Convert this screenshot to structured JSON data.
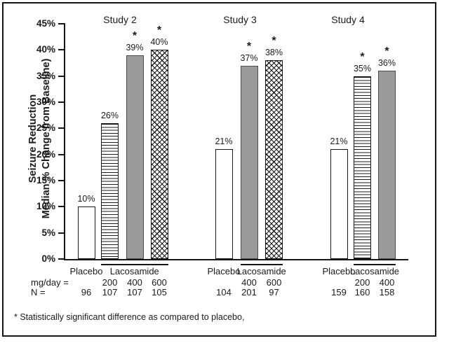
{
  "chart_data": {
    "type": "bar",
    "title": "",
    "y_axis": {
      "label_lines": [
        "Seizure Reduction",
        "Median % Change from Baseline)"
      ],
      "ylim": [
        0,
        45
      ],
      "tick_interval": 5,
      "tick_labels": [
        "0%",
        "5%",
        "10%",
        "15%",
        "20%",
        "25%",
        "30%",
        "35%",
        "40%",
        "45%"
      ],
      "grid": "off"
    },
    "row_labels": {
      "dose": "mg/day =",
      "n": "N ="
    },
    "significance_marker": "*",
    "footnote": "* Statistically significant difference as compared to placebo,",
    "colors": {
      "solid_bar_fill": "#9a9a9a",
      "axis_and_text": "#1a1a1a",
      "background": "#ffffff"
    },
    "groups": [
      {
        "title": "Study 2",
        "placebo_label": "Placebo",
        "drug_label": "Lacosamide",
        "bars": [
          {
            "category": "Placebo",
            "dose_mg_day": "",
            "n": "96",
            "value_pct": 10,
            "value_label": "10%",
            "significant": false,
            "pattern": "plain"
          },
          {
            "category": "Lacosamide",
            "dose_mg_day": "200",
            "n": "107",
            "value_pct": 26,
            "value_label": "26%",
            "significant": false,
            "pattern": "hstripes"
          },
          {
            "category": "Lacosamide",
            "dose_mg_day": "400",
            "n": "107",
            "value_pct": 39,
            "value_label": "39%",
            "significant": true,
            "pattern": "solid"
          },
          {
            "category": "Lacosamide",
            "dose_mg_day": "600",
            "n": "105",
            "value_pct": 40,
            "value_label": "40%",
            "significant": true,
            "pattern": "crosshatch"
          }
        ]
      },
      {
        "title": "Study 3",
        "placebo_label": "Placebo",
        "drug_label": "Lacosamide",
        "bars": [
          {
            "category": "Placebo",
            "dose_mg_day": "",
            "n": "104",
            "value_pct": 21,
            "value_label": "21%",
            "significant": false,
            "pattern": "plain"
          },
          {
            "category": "Lacosamide",
            "dose_mg_day": "400",
            "n": "201",
            "value_pct": 37,
            "value_label": "37%",
            "significant": true,
            "pattern": "solid"
          },
          {
            "category": "Lacosamide",
            "dose_mg_day": "600",
            "n": "97",
            "value_pct": 38,
            "value_label": "38%",
            "significant": true,
            "pattern": "crosshatch"
          }
        ]
      },
      {
        "title": "Study 4",
        "placebo_label": "Placebo",
        "drug_label": "Lacosamide",
        "bars": [
          {
            "category": "Placebo",
            "dose_mg_day": "",
            "n": "159",
            "value_pct": 21,
            "value_label": "21%",
            "significant": false,
            "pattern": "plain"
          },
          {
            "category": "Lacosamide",
            "dose_mg_day": "200",
            "n": "160",
            "value_pct": 35,
            "value_label": "35%",
            "significant": true,
            "pattern": "hstripes"
          },
          {
            "category": "Lacosamide",
            "dose_mg_day": "400",
            "n": "158",
            "value_pct": 36,
            "value_label": "36%",
            "significant": true,
            "pattern": "solid"
          }
        ]
      }
    ]
  }
}
